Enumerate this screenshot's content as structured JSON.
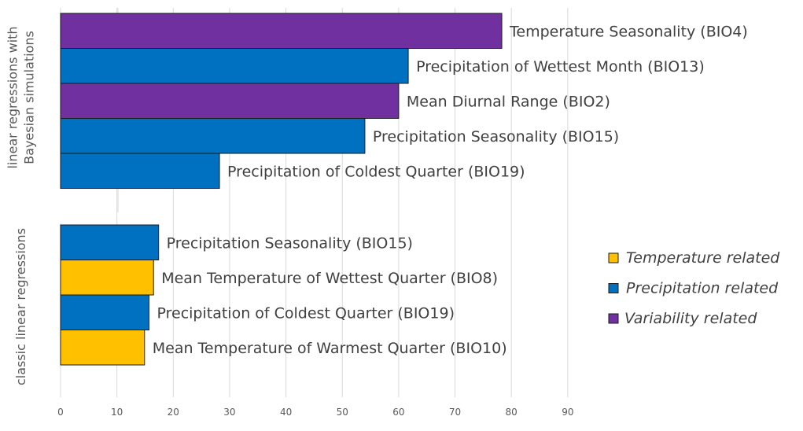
{
  "chart_data": {
    "type": "bar",
    "orientation": "horizontal",
    "xlim": [
      0,
      90
    ],
    "xticks": [
      0,
      10,
      20,
      30,
      40,
      50,
      60,
      70,
      80,
      90
    ],
    "grid": true,
    "legend_position": "right",
    "colors": {
      "temperature": "#ffc000",
      "precipitation": "#0070c0",
      "variability": "#7030a0"
    },
    "legend": [
      {
        "key": "temperature",
        "label": "Temperature related"
      },
      {
        "key": "precipitation",
        "label": "Precipitation related"
      },
      {
        "key": "variability",
        "label": "Variability related"
      }
    ],
    "groups": [
      {
        "label_lines": [
          "linear regressions with",
          "Bayesian  simulations"
        ],
        "bars": [
          {
            "label": "Temperature Seasonality (BIO4)",
            "value": 78.3,
            "category": "variability"
          },
          {
            "label": "Precipitation of Wettest Month (BIO13)",
            "value": 61.7,
            "category": "precipitation"
          },
          {
            "label": "Mean Diurnal Range (BIO2)",
            "value": 60.0,
            "category": "variability"
          },
          {
            "label": "Precipitation Seasonality (BIO15)",
            "value": 54.0,
            "category": "precipitation"
          },
          {
            "label": "Precipitation of Coldest Quarter (BIO19)",
            "value": 28.2,
            "category": "precipitation"
          }
        ]
      },
      {
        "label_lines": [
          "classic linear regressions"
        ],
        "bars": [
          {
            "label": "Precipitation Seasonality (BIO15)",
            "value": 17.4,
            "category": "precipitation"
          },
          {
            "label": "Mean Temperature of Wettest Quarter (BIO8)",
            "value": 16.5,
            "category": "temperature"
          },
          {
            "label": "Precipitation of Coldest Quarter (BIO19)",
            "value": 15.7,
            "category": "precipitation"
          },
          {
            "label": "Mean Temperature of Warmest Quarter (BIO10)",
            "value": 14.9,
            "category": "temperature"
          }
        ]
      }
    ]
  }
}
